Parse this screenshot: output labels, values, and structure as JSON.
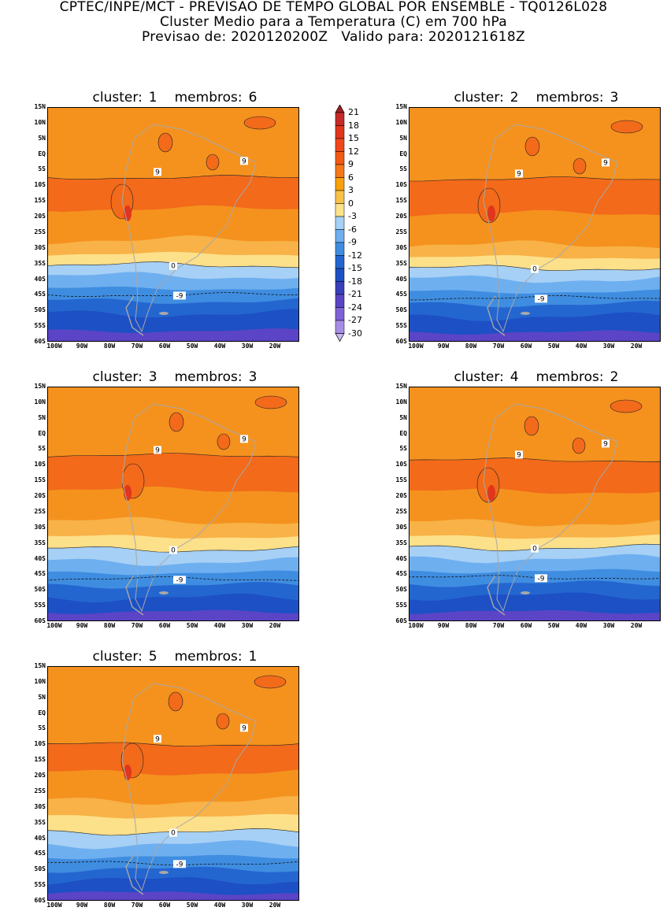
{
  "header": {
    "line1": "CPTEC/INPE/MCT - PREVISAO DE TEMPO GLOBAL POR ENSEMBLE - TQ0126L028",
    "line2": "Cluster Medio para a Temperatura (C) em 700 hPa",
    "line3": "Previsao de: 2020120200Z   Valido para: 2020121618Z"
  },
  "lat_labels": [
    "15N",
    "10N",
    "5N",
    "EQ",
    "5S",
    "10S",
    "15S",
    "20S",
    "25S",
    "30S",
    "35S",
    "40S",
    "45S",
    "50S",
    "55S",
    "60S"
  ],
  "lon_labels": [
    "100W",
    "90W",
    "80W",
    "70W",
    "60W",
    "50W",
    "40W",
    "30W",
    "20W"
  ],
  "colorbar": {
    "labels": [
      "21",
      "18",
      "15",
      "12",
      "9",
      "6",
      "3",
      "0",
      "-3",
      "-6",
      "-9",
      "-12",
      "-15",
      "-18",
      "-21",
      "-24",
      "-27",
      "-30"
    ],
    "colors": [
      "#a01f1f",
      "#c62a2a",
      "#e0361c",
      "#f0481a",
      "#f25a14",
      "#f5781a",
      "#f8a10a",
      "#f8c24a",
      "#fbe38a",
      "#a6d0f5",
      "#6eaff0",
      "#3f8de0",
      "#2466d0",
      "#1d50c4",
      "#3a3fbb",
      "#5b44c6",
      "#7e62d6",
      "#a78de6",
      "#cbb8f2"
    ]
  },
  "panels": [
    {
      "cluster_word": "cluster:",
      "cluster": "1",
      "members_word": "membros:",
      "members": "6",
      "bands": [
        4.5,
        6.5,
        8.5,
        9.4,
        10.1,
        10.8,
        11.6,
        12.4,
        13.2,
        14.3
      ],
      "contours": {
        "nine": "9",
        "zero": "0",
        "minus_nine": "-9"
      }
    },
    {
      "cluster_word": "cluster:",
      "cluster": "2",
      "members_word": "membros:",
      "members": "3",
      "bands": [
        4.6,
        6.8,
        8.8,
        9.6,
        10.3,
        11.0,
        11.8,
        12.6,
        13.4,
        14.4
      ],
      "contours": {
        "nine": "9",
        "zero": "0",
        "minus_nine": "-9"
      }
    },
    {
      "cluster_word": "cluster:",
      "cluster": "3",
      "members_word": "membros:",
      "members": "3",
      "bands": [
        4.4,
        6.6,
        8.6,
        9.6,
        10.4,
        11.2,
        11.9,
        12.7,
        13.5,
        14.4
      ],
      "contours": {
        "nine": "9",
        "zero": "0",
        "minus_nine": "-9"
      }
    },
    {
      "cluster_word": "cluster:",
      "cluster": "4",
      "members_word": "membros:",
      "members": "2",
      "bands": [
        4.7,
        6.7,
        8.7,
        9.6,
        10.3,
        11.0,
        11.8,
        12.6,
        13.4,
        14.4
      ],
      "contours": {
        "nine": "9",
        "zero": "0",
        "minus_nine": "-9"
      }
    },
    {
      "cluster_word": "cluster:",
      "cluster": "5",
      "members_word": "membros:",
      "members": "1",
      "bands": [
        5.0,
        6.8,
        8.6,
        9.6,
        10.6,
        11.4,
        12.2,
        13.0,
        13.7,
        14.5
      ],
      "contours": {
        "nine": "9",
        "zero": "0",
        "minus_nine": "-9"
      }
    }
  ]
}
